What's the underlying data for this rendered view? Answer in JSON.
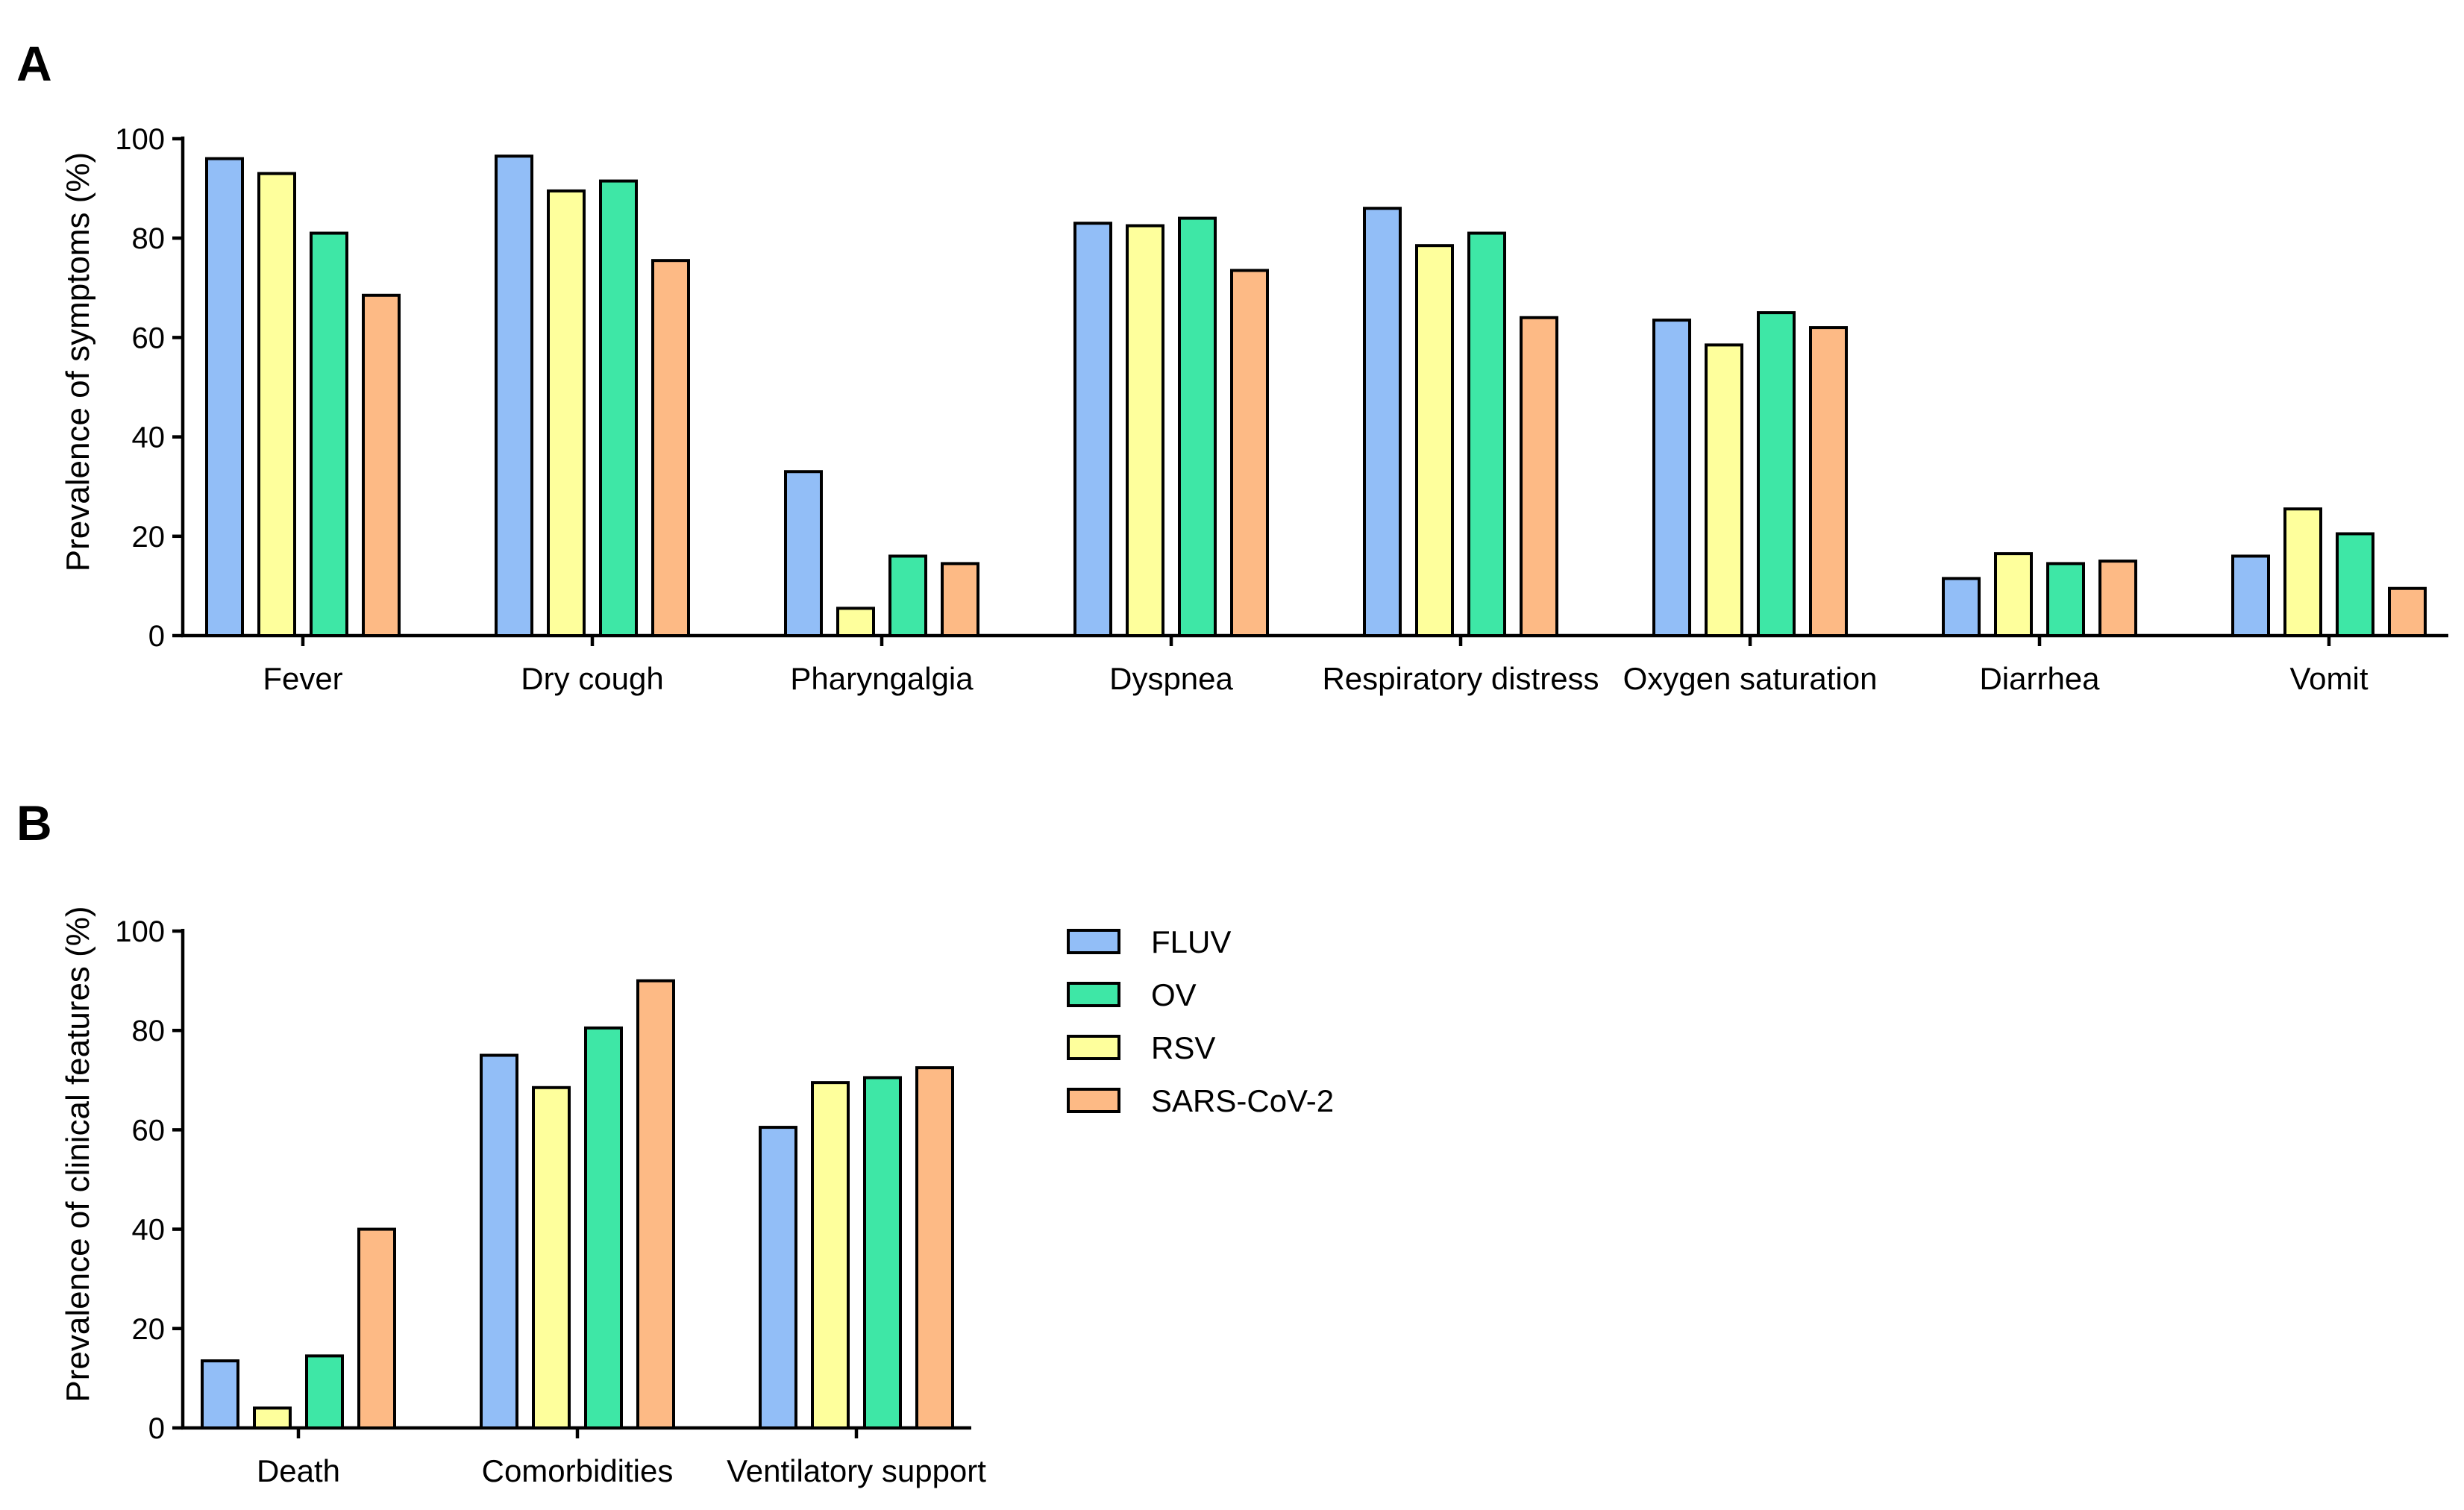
{
  "colors": {
    "FLUV": "#92bef7",
    "RSV": "#feff9c",
    "OV": "#3ee7a6",
    "SARS-CoV-2": "#fdba85"
  },
  "legend": {
    "entries": [
      "FLUV",
      "OV",
      "RSV",
      "SARS-CoV-2"
    ]
  },
  "chart_data": [
    {
      "type": "bar",
      "panel_label": "A",
      "title": "",
      "xlabel": "",
      "ylabel": "Prevalence of symptoms (%)",
      "ylim": [
        0,
        100
      ],
      "yticks": [
        0,
        20,
        40,
        60,
        80,
        100
      ],
      "grid": false,
      "categories": [
        "Fever",
        "Dry cough",
        "Pharyngalgia",
        "Dyspnea",
        "Respiratory distress",
        "Oxygen saturation",
        "Diarrhea",
        "Vomit"
      ],
      "series": [
        {
          "name": "FLUV",
          "values": [
            96,
            96.5,
            33,
            83,
            86,
            63.5,
            11.5,
            16
          ]
        },
        {
          "name": "RSV",
          "values": [
            93,
            89.5,
            5.5,
            82.5,
            78.5,
            58.5,
            16.5,
            25.5
          ]
        },
        {
          "name": "OV",
          "values": [
            81,
            91.5,
            16,
            84,
            81,
            65,
            14.5,
            20.5
          ]
        },
        {
          "name": "SARS-CoV-2",
          "values": [
            68.5,
            75.5,
            14.5,
            73.5,
            64,
            62,
            15,
            9.5
          ]
        }
      ]
    },
    {
      "type": "bar",
      "panel_label": "B",
      "title": "",
      "xlabel": "",
      "ylabel": "Prevalence of clinical features (%)",
      "ylim": [
        0,
        100
      ],
      "yticks": [
        0,
        20,
        40,
        60,
        80,
        100
      ],
      "grid": false,
      "legend_position": "right",
      "categories": [
        "Death",
        "Comorbidities",
        "Ventilatory support"
      ],
      "series": [
        {
          "name": "FLUV",
          "values": [
            13.5,
            75,
            60.5
          ]
        },
        {
          "name": "RSV",
          "values": [
            4,
            68.5,
            69.5
          ]
        },
        {
          "name": "OV",
          "values": [
            14.5,
            80.5,
            70.5
          ]
        },
        {
          "name": "SARS-CoV-2",
          "values": [
            40,
            90,
            72.5
          ]
        }
      ]
    }
  ]
}
